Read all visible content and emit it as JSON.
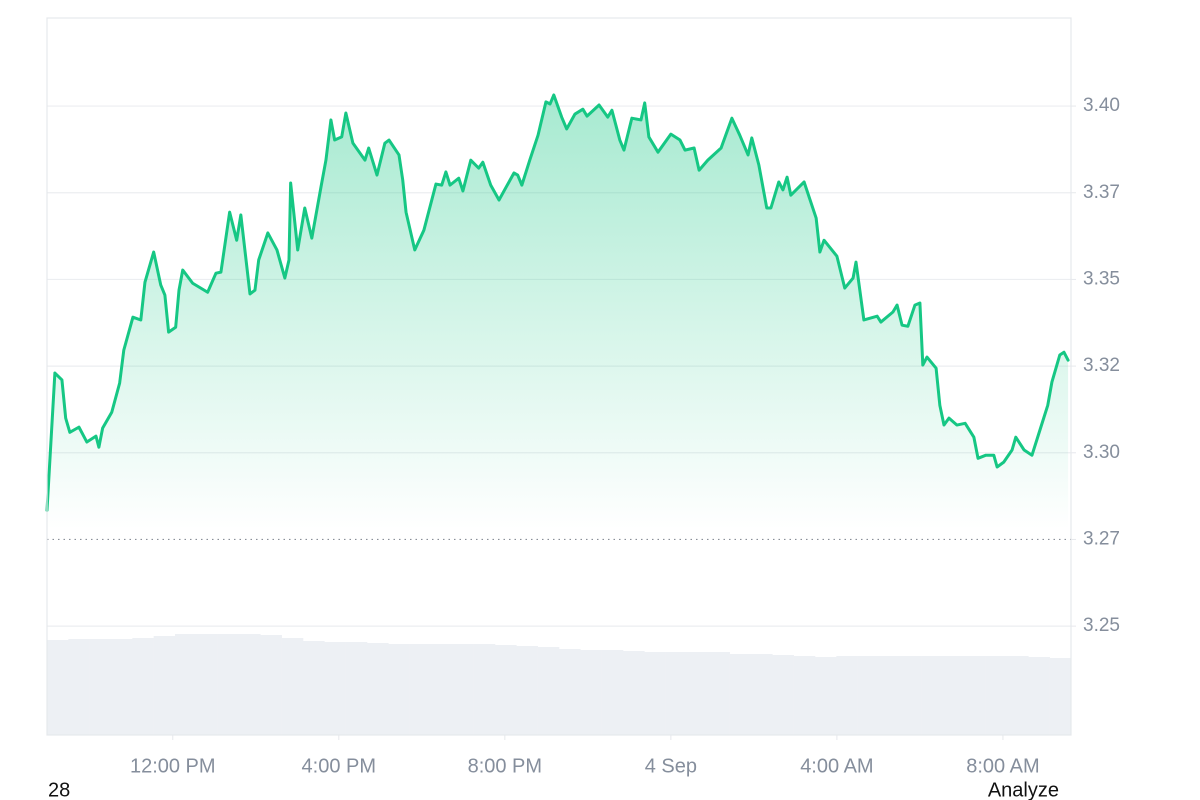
{
  "chart_data": {
    "type": "line",
    "color": "#16c784",
    "x": [
      8.97,
      9.16,
      9.33,
      9.42,
      9.52,
      9.74,
      9.93,
      10.15,
      10.22,
      10.31,
      10.53,
      10.72,
      10.82,
      11.04,
      11.23,
      11.33,
      11.54,
      11.71,
      11.81,
      11.9,
      12.07,
      12.15,
      12.24,
      12.48,
      12.84,
      13.04,
      13.16,
      13.37,
      13.54,
      13.64,
      13.86,
      13.98,
      14.07,
      14.29,
      14.51,
      14.7,
      14.8,
      14.84,
      15.01,
      15.18,
      15.35,
      15.57,
      15.69,
      15.81,
      15.9,
      16.07,
      16.17,
      16.34,
      16.63,
      16.72,
      16.92,
      17.11,
      17.21,
      17.45,
      17.54,
      17.62,
      17.83,
      18.05,
      18.34,
      18.48,
      18.58,
      18.68,
      18.89,
      18.99,
      19.18,
      19.37,
      19.47,
      19.66,
      19.86,
      20.22,
      20.31,
      20.41,
      20.6,
      20.8,
      20.99,
      21.09,
      21.18,
      21.37,
      21.49,
      21.69,
      21.88,
      21.98,
      22.27,
      22.48,
      22.58,
      22.77,
      22.87,
      23.06,
      23.28,
      23.37,
      23.47,
      23.69,
      24.0,
      24.22,
      24.34,
      24.56,
      24.68,
      24.89,
      25.21,
      25.47,
      25.66,
      25.86,
      25.95,
      26.12,
      26.31,
      26.41,
      26.6,
      26.7,
      26.8,
      26.89,
      27.21,
      27.5,
      27.59,
      27.69,
      28.0,
      28.19,
      28.39,
      28.46,
      28.65,
      28.97,
      29.06,
      29.35,
      29.45,
      29.57,
      29.71,
      29.88,
      30.0,
      30.07,
      30.17,
      30.39,
      30.48,
      30.58,
      30.7,
      30.89,
      31.09,
      31.3,
      31.4,
      31.59,
      31.78,
      31.86,
      32.02,
      32.22,
      32.31,
      32.51,
      32.7,
      32.89,
      33.08,
      33.18,
      33.37,
      33.47,
      33.57
    ],
    "values": [
      3.2834,
      3.323,
      3.321,
      3.31,
      3.3059,
      3.3074,
      3.3031,
      3.3048,
      3.3016,
      3.3071,
      3.3117,
      3.3201,
      3.3296,
      3.3391,
      3.3383,
      3.3492,
      3.3579,
      3.3484,
      3.3455,
      3.3348,
      3.3362,
      3.3469,
      3.3527,
      3.3489,
      3.3463,
      3.3518,
      3.3521,
      3.3694,
      3.3613,
      3.3686,
      3.3458,
      3.3469,
      3.3556,
      3.3634,
      3.3585,
      3.3504,
      3.3556,
      3.3778,
      3.3585,
      3.3706,
      3.3619,
      3.3766,
      3.3844,
      3.396,
      3.3902,
      3.3911,
      3.398,
      3.3893,
      3.3844,
      3.3879,
      3.3801,
      3.3893,
      3.3902,
      3.3859,
      3.3787,
      3.3694,
      3.3585,
      3.3642,
      3.3775,
      3.3772,
      3.381,
      3.3772,
      3.3792,
      3.3755,
      3.3844,
      3.3821,
      3.3838,
      3.3772,
      3.3729,
      3.3807,
      3.3801,
      3.3772,
      3.3844,
      3.3916,
      3.4012,
      3.4006,
      3.4032,
      3.3968,
      3.3934,
      3.3977,
      3.3991,
      3.3971,
      3.4003,
      3.3968,
      3.3988,
      3.3902,
      3.3873,
      3.3965,
      3.396,
      3.4009,
      3.3911,
      3.3867,
      3.3919,
      3.3902,
      3.3873,
      3.3879,
      3.3815,
      3.3844,
      3.3879,
      3.3965,
      3.3916,
      3.3859,
      3.3908,
      3.383,
      3.3706,
      3.3706,
      3.3781,
      3.3758,
      3.3795,
      3.3743,
      3.3781,
      3.3677,
      3.3579,
      3.3613,
      3.3567,
      3.3475,
      3.3504,
      3.355,
      3.3383,
      3.3394,
      3.3377,
      3.3406,
      3.3426,
      3.3368,
      3.3365,
      3.3426,
      3.3432,
      3.3253,
      3.3276,
      3.3244,
      3.3137,
      3.308,
      3.31,
      3.308,
      3.3085,
      3.3045,
      3.2984,
      3.2993,
      3.2993,
      3.2959,
      3.2973,
      3.3008,
      3.3045,
      3.3008,
      3.2993,
      3.3065,
      3.3137,
      3.3204,
      3.3282,
      3.329,
      3.3267
    ],
    "xlim": [
      8.97,
      33.64
    ],
    "xticks": [
      {
        "value": 12,
        "label": "12:00 PM"
      },
      {
        "value": 16,
        "label": "4:00 PM"
      },
      {
        "value": 20,
        "label": "8:00 PM"
      },
      {
        "value": 24,
        "label": "4 Sep"
      },
      {
        "value": 28,
        "label": "4:00 AM"
      },
      {
        "value": 32,
        "label": "8:00 AM"
      }
    ],
    "ylim": [
      3.2186,
      3.4254
    ],
    "yticks": [
      {
        "value": 3.25,
        "label": "3.25"
      },
      {
        "value": 3.275,
        "label": "3.27"
      },
      {
        "value": 3.3,
        "label": "3.30"
      },
      {
        "value": 3.325,
        "label": "3.32"
      },
      {
        "value": 3.35,
        "label": "3.35"
      },
      {
        "value": 3.375,
        "label": "3.37"
      },
      {
        "value": 3.4,
        "label": "3.40"
      }
    ],
    "baseline": 3.275,
    "grid": true,
    "volume": {
      "color": "#edf0f4",
      "ylim": [
        0,
        120
      ],
      "values": [
        95,
        96,
        96,
        96,
        97,
        99,
        101,
        101,
        101,
        101,
        100,
        97,
        94,
        93,
        93,
        92,
        91,
        91,
        91,
        91,
        91,
        90,
        89,
        88,
        86,
        85,
        85,
        84,
        83,
        83,
        83,
        83,
        81,
        81,
        80,
        79,
        78,
        79,
        79,
        79,
        79,
        79,
        79,
        79,
        79,
        79,
        78,
        77
      ]
    }
  },
  "page": {
    "left_text": "28",
    "action": "Analyze"
  }
}
